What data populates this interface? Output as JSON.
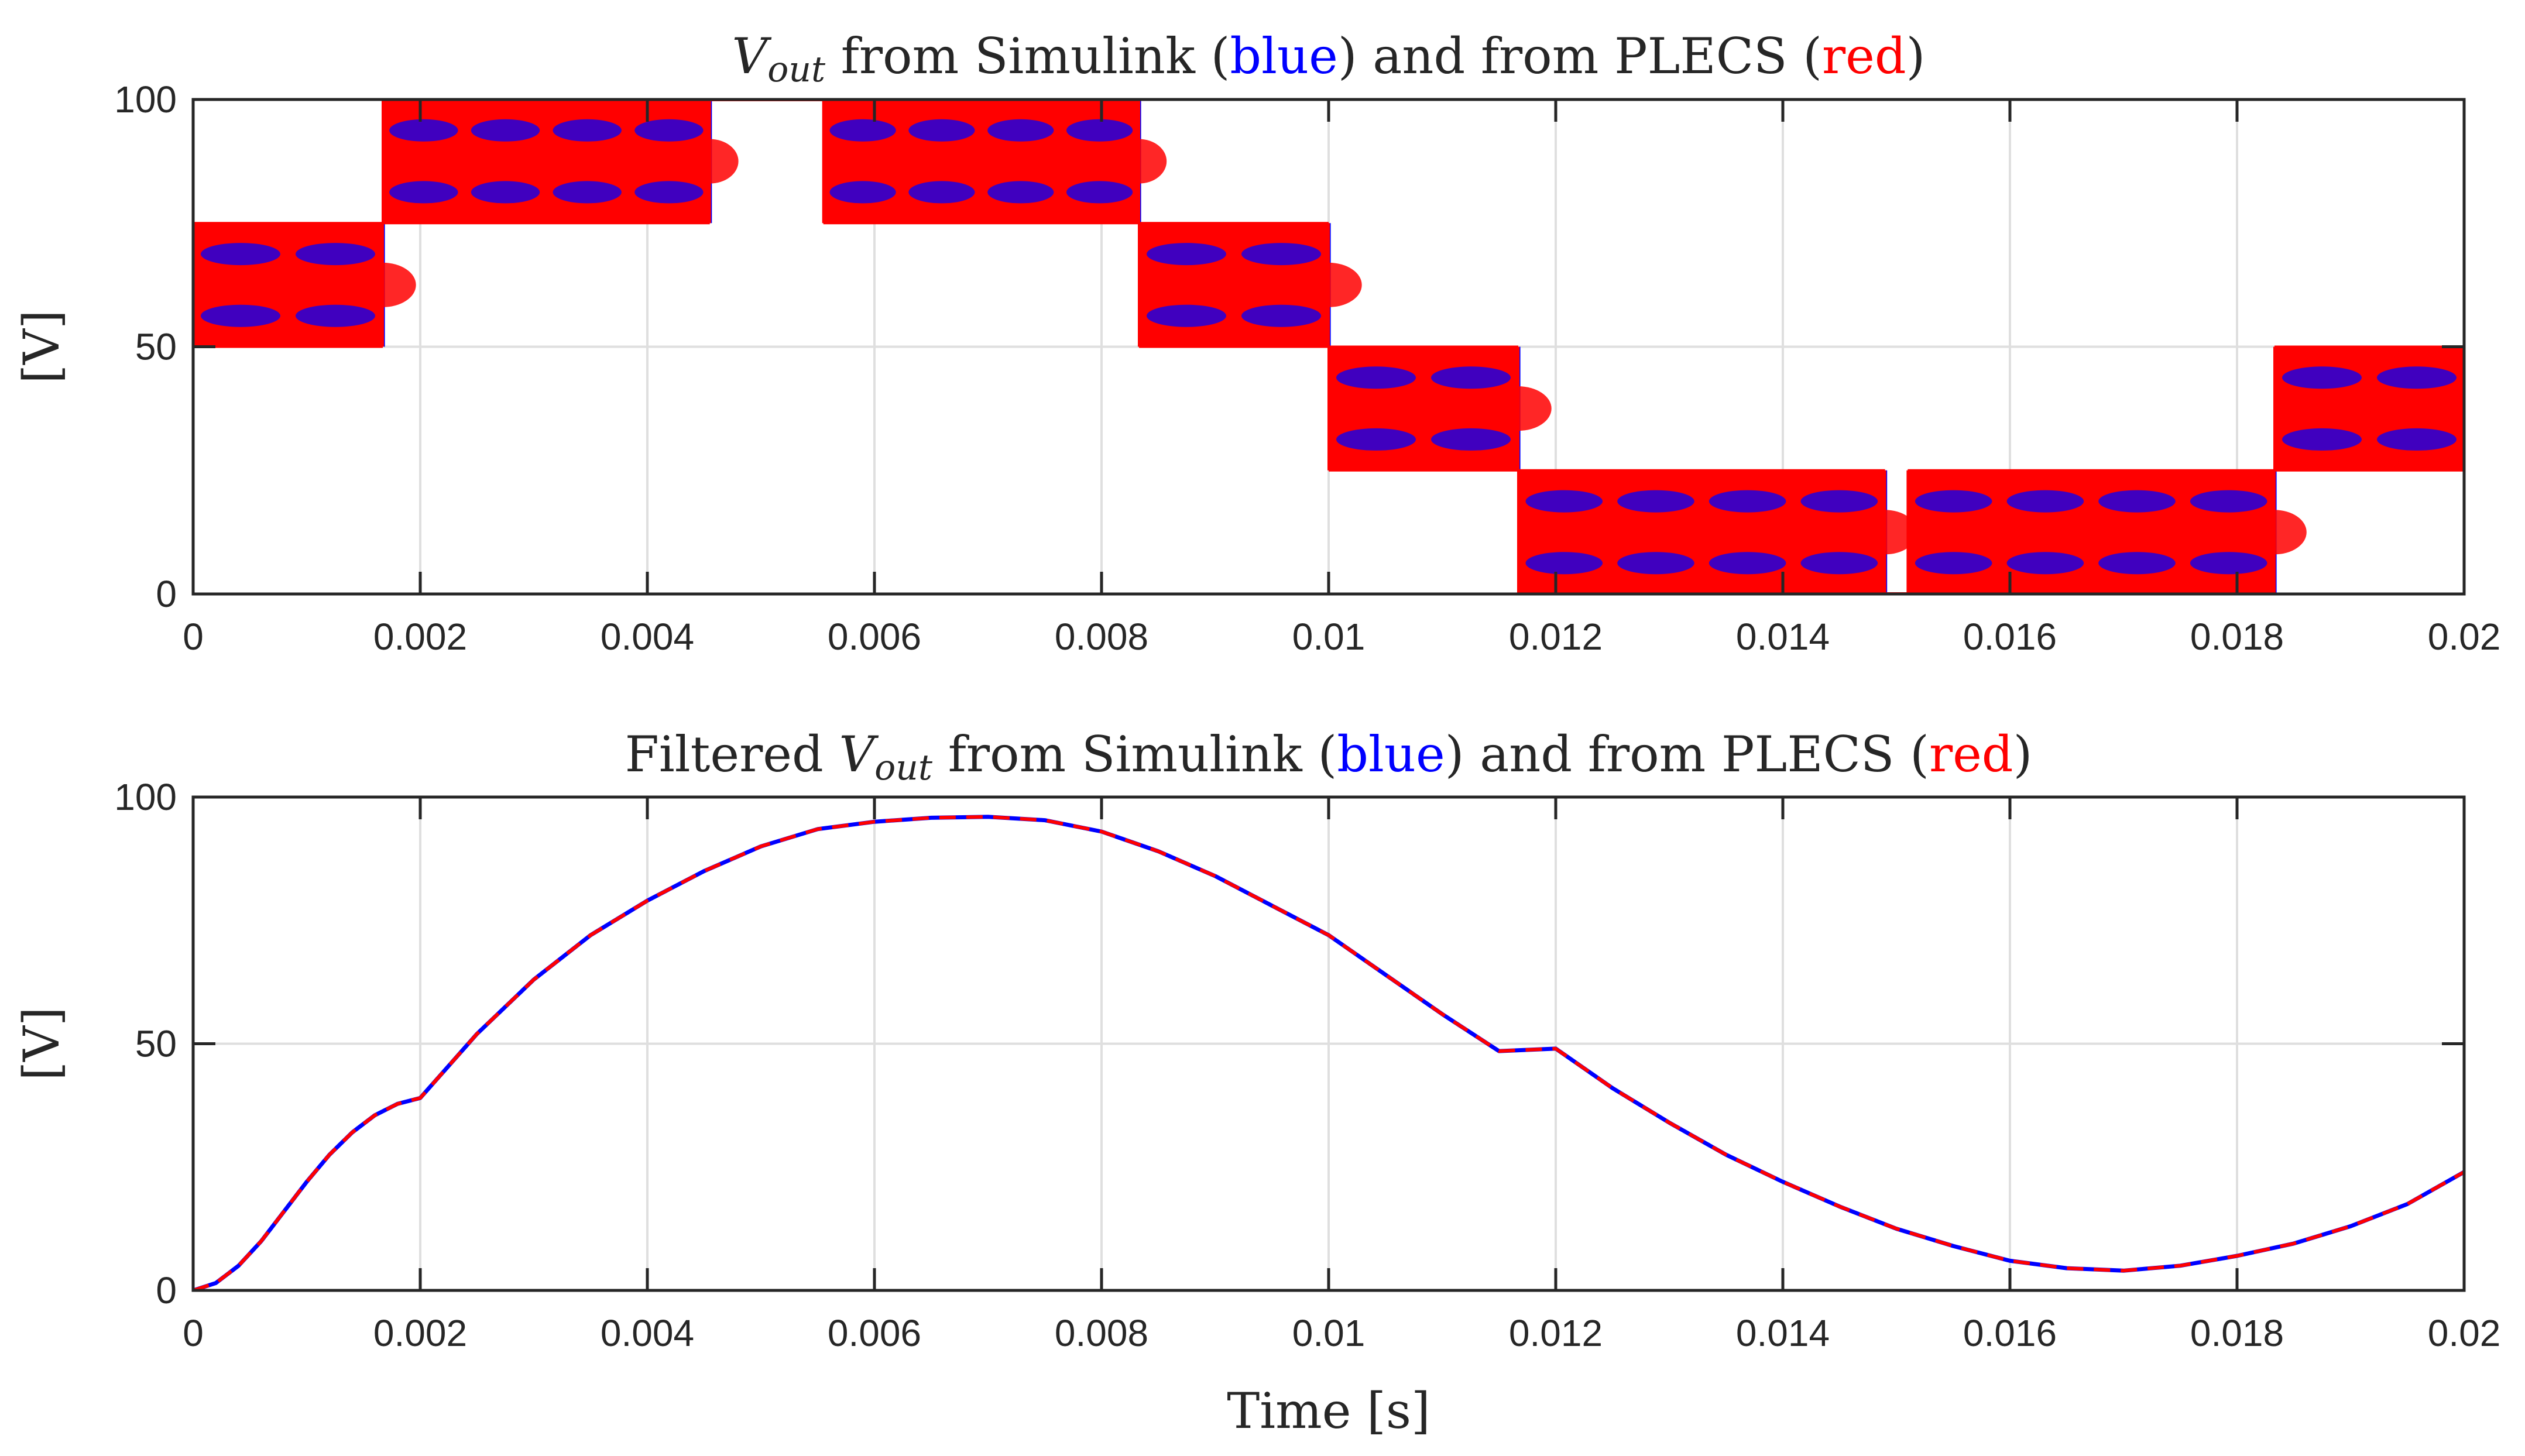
{
  "colors": {
    "simulink": "#0000ff",
    "plecs": "#ff0000",
    "axes": "#262626",
    "grid": "#dfdfdf",
    "background": "#ffffff"
  },
  "chart_data": [
    {
      "type": "line",
      "title_parts": [
        {
          "text": "V",
          "style": "italic"
        },
        {
          "text": "out",
          "style": "italic-sub"
        },
        {
          "text": " from Simulink (",
          "style": "normal"
        },
        {
          "text": "blue",
          "style": "blue"
        },
        {
          "text": ") and from PLECS (",
          "style": "normal"
        },
        {
          "text": "red",
          "style": "red"
        },
        {
          "text": ")",
          "style": "normal"
        }
      ],
      "xlabel": "",
      "ylabel": "[V]",
      "xlim": [
        0,
        0.02
      ],
      "ylim": [
        0,
        100
      ],
      "xticks": [
        0,
        0.002,
        0.004,
        0.006,
        0.008,
        0.01,
        0.012,
        0.014,
        0.016,
        0.018,
        0.02
      ],
      "xtick_labels": [
        "0",
        "0.002",
        "0.004",
        "0.006",
        "0.008",
        "0.01",
        "0.012",
        "0.014",
        "0.016",
        "0.018",
        "0.02"
      ],
      "yticks": [
        0,
        50,
        100
      ],
      "ytick_labels": [
        "0",
        "50",
        "100"
      ],
      "grid": true,
      "pwm": {
        "switching_frequency_hz": 10000,
        "segments": [
          {
            "t0": 0.0,
            "t1": 0.00167,
            "low": 50,
            "high": 75
          },
          {
            "t0": 0.00167,
            "t1": 0.00455,
            "low": 75,
            "high": 100
          },
          {
            "t0": 0.00455,
            "t1": 0.00555,
            "low": 100,
            "high": 100
          },
          {
            "t0": 0.00555,
            "t1": 0.00833,
            "low": 75,
            "high": 100
          },
          {
            "t0": 0.00833,
            "t1": 0.01,
            "low": 50,
            "high": 75
          },
          {
            "t0": 0.01,
            "t1": 0.01167,
            "low": 25,
            "high": 50
          },
          {
            "t0": 0.01167,
            "t1": 0.0149,
            "low": 0,
            "high": 25
          },
          {
            "t0": 0.0149,
            "t1": 0.0151,
            "low": 0,
            "high": 0
          },
          {
            "t0": 0.0151,
            "t1": 0.01833,
            "low": 0,
            "high": 25
          },
          {
            "t0": 0.01833,
            "t1": 0.02,
            "low": 25,
            "high": 50
          }
        ]
      },
      "series": [
        {
          "name": "Simulink",
          "color": "#0000ff"
        },
        {
          "name": "PLECS",
          "color": "#ff0000"
        }
      ]
    },
    {
      "type": "line",
      "title_parts": [
        {
          "text": "Filtered ",
          "style": "normal"
        },
        {
          "text": "V",
          "style": "italic"
        },
        {
          "text": "out",
          "style": "italic-sub"
        },
        {
          "text": " from Simulink (",
          "style": "normal"
        },
        {
          "text": "blue",
          "style": "blue"
        },
        {
          "text": ") and from PLECS (",
          "style": "normal"
        },
        {
          "text": "red",
          "style": "red"
        },
        {
          "text": ")",
          "style": "normal"
        }
      ],
      "xlabel": "Time [s]",
      "ylabel": "[V]",
      "xlim": [
        0,
        0.02
      ],
      "ylim": [
        0,
        100
      ],
      "xticks": [
        0,
        0.002,
        0.004,
        0.006,
        0.008,
        0.01,
        0.012,
        0.014,
        0.016,
        0.018,
        0.02
      ],
      "xtick_labels": [
        "0",
        "0.002",
        "0.004",
        "0.006",
        "0.008",
        "0.01",
        "0.012",
        "0.014",
        "0.016",
        "0.018",
        "0.02"
      ],
      "yticks": [
        0,
        50,
        100
      ],
      "ytick_labels": [
        "0",
        "50",
        "100"
      ],
      "grid": true,
      "series": [
        {
          "name": "Simulink",
          "color": "#0000ff",
          "style": "solid",
          "x": [
            0,
            0.0002,
            0.0004,
            0.0006,
            0.0008,
            0.001,
            0.0012,
            0.0014,
            0.0016,
            0.0018,
            0.002,
            0.0025,
            0.003,
            0.0035,
            0.004,
            0.0045,
            0.005,
            0.0055,
            0.006,
            0.0065,
            0.007,
            0.0075,
            0.008,
            0.0085,
            0.009,
            0.0095,
            0.01,
            0.0105,
            0.011,
            0.0115,
            0.012,
            0.0125,
            0.013,
            0.0135,
            0.014,
            0.0145,
            0.015,
            0.0155,
            0.016,
            0.0165,
            0.017,
            0.0175,
            0.018,
            0.0185,
            0.019,
            0.0195,
            0.02
          ],
          "y": [
            0,
            1.5,
            5,
            10,
            16,
            22,
            27.5,
            32,
            35.5,
            37.8,
            39,
            52,
            63,
            72,
            79,
            85,
            90,
            93.5,
            95,
            95.8,
            96,
            95.3,
            93,
            89,
            84,
            78,
            72,
            64,
            56,
            48.5,
            49,
            41,
            34,
            27.5,
            22,
            17,
            12.5,
            9,
            6,
            4.5,
            4,
            5,
            7,
            9.5,
            13,
            17.5,
            24
          ]
        },
        {
          "name": "PLECS",
          "color": "#ff0000",
          "style": "dashed",
          "x": [
            0,
            0.0002,
            0.0004,
            0.0006,
            0.0008,
            0.001,
            0.0012,
            0.0014,
            0.0016,
            0.0018,
            0.002,
            0.0025,
            0.003,
            0.0035,
            0.004,
            0.0045,
            0.005,
            0.0055,
            0.006,
            0.0065,
            0.007,
            0.0075,
            0.008,
            0.0085,
            0.009,
            0.0095,
            0.01,
            0.0105,
            0.011,
            0.0115,
            0.012,
            0.0125,
            0.013,
            0.0135,
            0.014,
            0.0145,
            0.015,
            0.0155,
            0.016,
            0.0165,
            0.017,
            0.0175,
            0.018,
            0.0185,
            0.019,
            0.0195,
            0.02
          ],
          "y": [
            0,
            1.5,
            5,
            10,
            16,
            22,
            27.5,
            32,
            35.5,
            37.8,
            39,
            52,
            63,
            72,
            79,
            85,
            90,
            93.5,
            95,
            95.8,
            96,
            95.3,
            93,
            89,
            84,
            78,
            72,
            64,
            56,
            48.5,
            49,
            41,
            34,
            27.5,
            22,
            17,
            12.5,
            9,
            6,
            4.5,
            4,
            5,
            7,
            9.5,
            13,
            17.5,
            24
          ]
        }
      ]
    }
  ]
}
